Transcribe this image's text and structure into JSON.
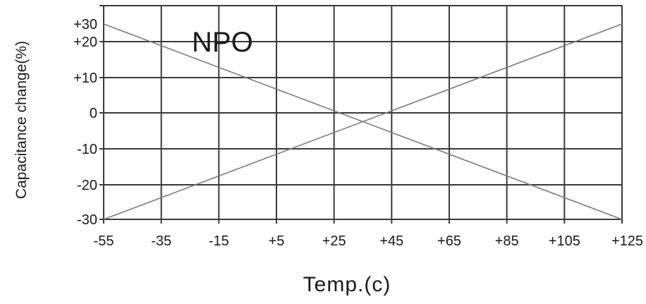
{
  "chart_data": {
    "type": "line",
    "xlabel": "Temp.(c)",
    "ylabel": "Capacitance change(%)",
    "annotation": "NPO",
    "x_ticks": [
      "-55",
      "-35",
      "-15",
      "+5",
      "+25",
      "+45",
      "+65",
      "+85",
      "+105",
      "+125"
    ],
    "y_ticks": [
      "+30",
      "+20",
      "+10",
      "0",
      "-10",
      "-20",
      "-30"
    ],
    "y_tick_values": [
      30,
      20,
      10,
      0,
      -10,
      -20,
      -30
    ],
    "xlim": [
      -55,
      125
    ],
    "ylim": [
      -30,
      30
    ],
    "grid": true,
    "series": [
      {
        "x": [
          -55,
          125
        ],
        "y": [
          30,
          -30
        ]
      },
      {
        "x": [
          -55,
          125
        ],
        "y": [
          -30,
          30
        ]
      }
    ],
    "colors": {
      "grid": "#3a3a3a",
      "line": "#7a7a7a",
      "text": "#1a1a1a"
    }
  }
}
